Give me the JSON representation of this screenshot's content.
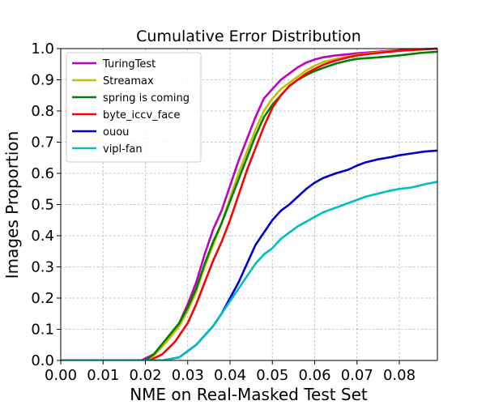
{
  "chart_data": {
    "type": "line",
    "title": "Cumulative Error Distribution",
    "xlabel": "NME on Real-Masked Test Set",
    "ylabel": "Images Proportion",
    "xlim": [
      0.0,
      0.089
    ],
    "ylim": [
      0.0,
      1.0
    ],
    "xticks": [
      "0.00",
      "0.01",
      "0.02",
      "0.03",
      "0.04",
      "0.05",
      "0.06",
      "0.07",
      "0.08"
    ],
    "xtick_values": [
      0.0,
      0.01,
      0.02,
      0.03,
      0.04,
      0.05,
      0.06,
      0.07,
      0.08
    ],
    "yticks": [
      "0.0",
      "0.1",
      "0.2",
      "0.3",
      "0.4",
      "0.5",
      "0.6",
      "0.7",
      "0.8",
      "0.9",
      "1.0"
    ],
    "ytick_values": [
      0.0,
      0.1,
      0.2,
      0.3,
      0.4,
      0.5,
      0.6,
      0.7,
      0.8,
      0.9,
      1.0
    ],
    "grid": true,
    "legend_position": "top-left",
    "series": [
      {
        "name": "TuringTest",
        "color": "#bf00bf",
        "x": [
          0.0,
          0.019,
          0.022,
          0.025,
          0.028,
          0.03,
          0.032,
          0.034,
          0.036,
          0.038,
          0.04,
          0.042,
          0.044,
          0.046,
          0.048,
          0.05,
          0.052,
          0.054,
          0.056,
          0.058,
          0.06,
          0.062,
          0.065,
          0.068,
          0.07,
          0.075,
          0.08,
          0.085,
          0.089
        ],
        "y": [
          0.0,
          0.0,
          0.02,
          0.06,
          0.12,
          0.18,
          0.25,
          0.34,
          0.42,
          0.48,
          0.56,
          0.64,
          0.71,
          0.78,
          0.84,
          0.87,
          0.9,
          0.92,
          0.94,
          0.955,
          0.965,
          0.972,
          0.978,
          0.982,
          0.985,
          0.99,
          0.995,
          0.998,
          1.0
        ]
      },
      {
        "name": "Streamax",
        "color": "#bfbf00",
        "x": [
          0.0,
          0.02,
          0.022,
          0.025,
          0.028,
          0.03,
          0.032,
          0.034,
          0.036,
          0.038,
          0.04,
          0.042,
          0.044,
          0.046,
          0.048,
          0.05,
          0.052,
          0.054,
          0.056,
          0.058,
          0.06,
          0.062,
          0.065,
          0.068,
          0.07,
          0.075,
          0.08,
          0.085,
          0.089
        ],
        "y": [
          0.0,
          0.0,
          0.015,
          0.06,
          0.11,
          0.16,
          0.22,
          0.3,
          0.37,
          0.44,
          0.52,
          0.6,
          0.67,
          0.74,
          0.8,
          0.84,
          0.87,
          0.89,
          0.91,
          0.93,
          0.945,
          0.957,
          0.967,
          0.975,
          0.98,
          0.988,
          0.993,
          0.997,
          1.0
        ]
      },
      {
        "name": "spring is coming",
        "color": "#007f00",
        "x": [
          0.0,
          0.02,
          0.022,
          0.025,
          0.028,
          0.03,
          0.032,
          0.034,
          0.036,
          0.038,
          0.04,
          0.042,
          0.044,
          0.046,
          0.048,
          0.05,
          0.052,
          0.054,
          0.056,
          0.058,
          0.06,
          0.062,
          0.065,
          0.068,
          0.07,
          0.075,
          0.08,
          0.085,
          0.089
        ],
        "y": [
          0.0,
          0.0,
          0.02,
          0.07,
          0.12,
          0.17,
          0.23,
          0.31,
          0.38,
          0.44,
          0.51,
          0.58,
          0.65,
          0.72,
          0.78,
          0.82,
          0.85,
          0.88,
          0.9,
          0.915,
          0.928,
          0.938,
          0.952,
          0.962,
          0.967,
          0.972,
          0.978,
          0.986,
          0.99
        ]
      },
      {
        "name": "byte_iccv_face",
        "color": "#ff0000",
        "x": [
          0.0,
          0.021,
          0.024,
          0.027,
          0.03,
          0.032,
          0.034,
          0.036,
          0.038,
          0.04,
          0.042,
          0.044,
          0.046,
          0.048,
          0.05,
          0.052,
          0.054,
          0.056,
          0.058,
          0.06,
          0.062,
          0.065,
          0.068,
          0.07,
          0.075,
          0.08,
          0.085,
          0.089
        ],
        "y": [
          0.0,
          0.0,
          0.02,
          0.06,
          0.12,
          0.18,
          0.25,
          0.32,
          0.38,
          0.45,
          0.53,
          0.61,
          0.68,
          0.75,
          0.81,
          0.85,
          0.88,
          0.9,
          0.92,
          0.935,
          0.948,
          0.962,
          0.972,
          0.978,
          0.986,
          0.993,
          0.997,
          1.0
        ]
      },
      {
        "name": "ouou",
        "color": "#0000cc",
        "x": [
          0.0,
          0.024,
          0.028,
          0.03,
          0.032,
          0.034,
          0.036,
          0.038,
          0.04,
          0.042,
          0.044,
          0.046,
          0.048,
          0.05,
          0.052,
          0.054,
          0.056,
          0.058,
          0.06,
          0.062,
          0.065,
          0.068,
          0.07,
          0.072,
          0.075,
          0.078,
          0.08,
          0.083,
          0.086,
          0.089
        ],
        "y": [
          0.0,
          0.0,
          0.01,
          0.03,
          0.05,
          0.08,
          0.11,
          0.15,
          0.2,
          0.25,
          0.31,
          0.37,
          0.41,
          0.45,
          0.48,
          0.5,
          0.525,
          0.55,
          0.57,
          0.585,
          0.6,
          0.612,
          0.625,
          0.635,
          0.645,
          0.652,
          0.658,
          0.664,
          0.67,
          0.673
        ]
      },
      {
        "name": "vipl-fan",
        "color": "#00bfbf",
        "x": [
          0.0,
          0.024,
          0.028,
          0.03,
          0.032,
          0.034,
          0.036,
          0.038,
          0.04,
          0.042,
          0.044,
          0.046,
          0.048,
          0.05,
          0.052,
          0.054,
          0.056,
          0.058,
          0.06,
          0.062,
          0.065,
          0.068,
          0.07,
          0.072,
          0.075,
          0.078,
          0.08,
          0.083,
          0.086,
          0.089
        ],
        "y": [
          0.0,
          0.0,
          0.01,
          0.03,
          0.05,
          0.08,
          0.11,
          0.15,
          0.19,
          0.23,
          0.27,
          0.31,
          0.34,
          0.36,
          0.39,
          0.41,
          0.43,
          0.445,
          0.46,
          0.475,
          0.49,
          0.505,
          0.515,
          0.525,
          0.535,
          0.545,
          0.55,
          0.555,
          0.565,
          0.573
        ]
      }
    ]
  }
}
